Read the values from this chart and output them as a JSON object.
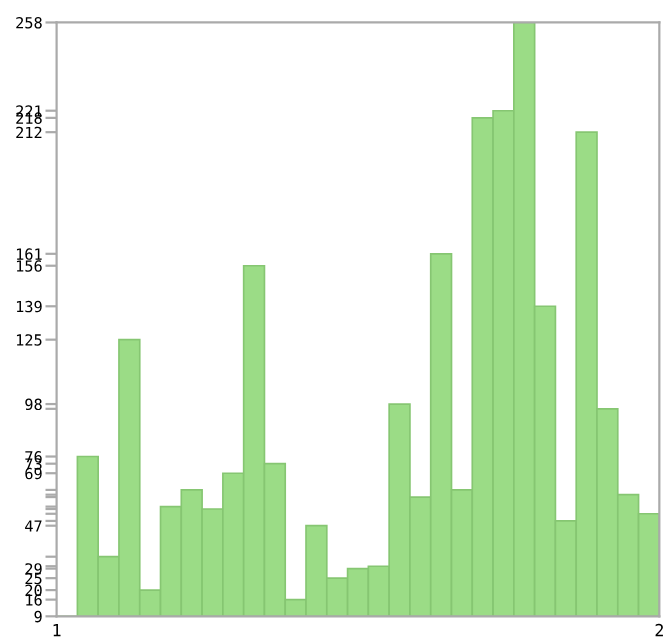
{
  "chart_data": {
    "type": "bar",
    "categories": [
      null,
      null,
      null,
      null,
      null,
      null,
      null,
      null,
      null,
      null,
      null,
      null,
      null,
      null,
      null,
      null,
      null,
      null,
      null,
      null,
      null,
      null,
      null,
      null,
      null,
      null,
      null,
      null,
      null
    ],
    "values": [
      9,
      76,
      34,
      125,
      20,
      55,
      62,
      54,
      69,
      156,
      73,
      16,
      47,
      25,
      29,
      30,
      98,
      59,
      161,
      62,
      218,
      221,
      258,
      139,
      49,
      212,
      96,
      60,
      52
    ],
    "color": "#9bdc86",
    "ylim": [
      9,
      258
    ],
    "yticks": [
      9,
      16,
      20,
      25,
      29,
      {
        "value": 30,
        "label": null
      },
      {
        "value": 34,
        "label": null
      },
      47,
      {
        "value": 49,
        "label": null
      },
      {
        "value": 52,
        "label": null
      },
      {
        "value": 54,
        "label": null
      },
      {
        "value": 55,
        "label": null
      },
      {
        "value": 59,
        "label": null
      },
      {
        "value": 60,
        "label": null
      },
      {
        "value": 62,
        "label": null
      },
      69,
      73,
      76,
      {
        "value": 96,
        "label": null
      },
      98,
      125,
      139,
      156,
      161,
      212,
      218,
      221,
      258
    ],
    "annotations": [
      "1",
      "2"
    ],
    "grid": false
  }
}
